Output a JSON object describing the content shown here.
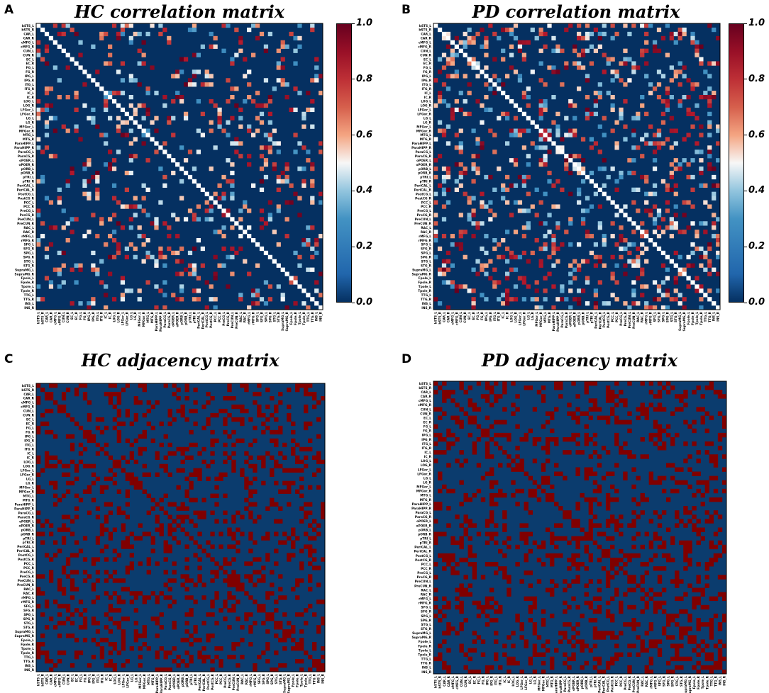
{
  "figure": {
    "panels": [
      {
        "letter": "A",
        "title": "HC correlation matrix",
        "kind": "correlation",
        "seed": 11,
        "density": 0.16,
        "colorbar": true
      },
      {
        "letter": "B",
        "title": "PD correlation matrix",
        "kind": "correlation",
        "seed": 23,
        "density": 0.2,
        "colorbar": true
      },
      {
        "letter": "C",
        "title": "HC adjacency matrix",
        "kind": "adjacency",
        "seed": 37,
        "density": 0.22,
        "colorbar": false
      },
      {
        "letter": "D",
        "title": "PD adjacency matrix",
        "kind": "adjacency",
        "seed": 53,
        "density": 0.24,
        "colorbar": false
      }
    ],
    "colorbar_ticks": [
      "0.0",
      "0.2",
      "0.4",
      "0.6",
      "0.8",
      "1.0"
    ],
    "colors": {
      "low": "#053061",
      "mid": "#f7f7f7",
      "high": "#67001f",
      "adjacency_off": "#0b3c6e",
      "adjacency_on": "#800000"
    }
  },
  "chart_data": {
    "type": "heatmap",
    "value_range": [
      0.0,
      1.0
    ],
    "regions": [
      "bSTS_L",
      "bSTS_R",
      "CAR_L",
      "CAR_R",
      "cMFG_L",
      "cMFG_R",
      "CUN_L",
      "CUN_R",
      "EC_L",
      "EC_R",
      "FG_L",
      "FG_R",
      "IPG_L",
      "IPG_R",
      "ITG_L",
      "ITG_R",
      "IC_L",
      "IC_R",
      "LOG_L",
      "LOG_R",
      "LFGor_L",
      "LFGor_R",
      "LG_L",
      "LG_R",
      "MFGor_L",
      "MFGor_R",
      "MTG_L",
      "MTG_R",
      "ParaHIPP_L",
      "ParaHIPP_R",
      "ParaCG_L",
      "ParaCG_R",
      "oPOER_L",
      "oPOER_R",
      "pORB_L",
      "pORB_R",
      "pTRI_L",
      "pTRI_R",
      "PeriCAL_L",
      "PeriCAL_R",
      "PostCG_L",
      "PostCG_R",
      "PCC_L",
      "PCC_R",
      "PreCG_L",
      "PreCG_R",
      "PreCUN_L",
      "PreCUN_R",
      "RAC_L",
      "RAC_R",
      "rMFG_L",
      "rMFG_R",
      "SFG_L",
      "SFG_R",
      "SPG_L",
      "SPG_R",
      "STG_L",
      "STG_R",
      "SupraMG_L",
      "SupraMG_R",
      "Fpole_L",
      "Fpole_R",
      "Tpole_L",
      "Tpole_R",
      "TTG_L",
      "TTG_R",
      "INS_L",
      "INS_R"
    ]
  }
}
